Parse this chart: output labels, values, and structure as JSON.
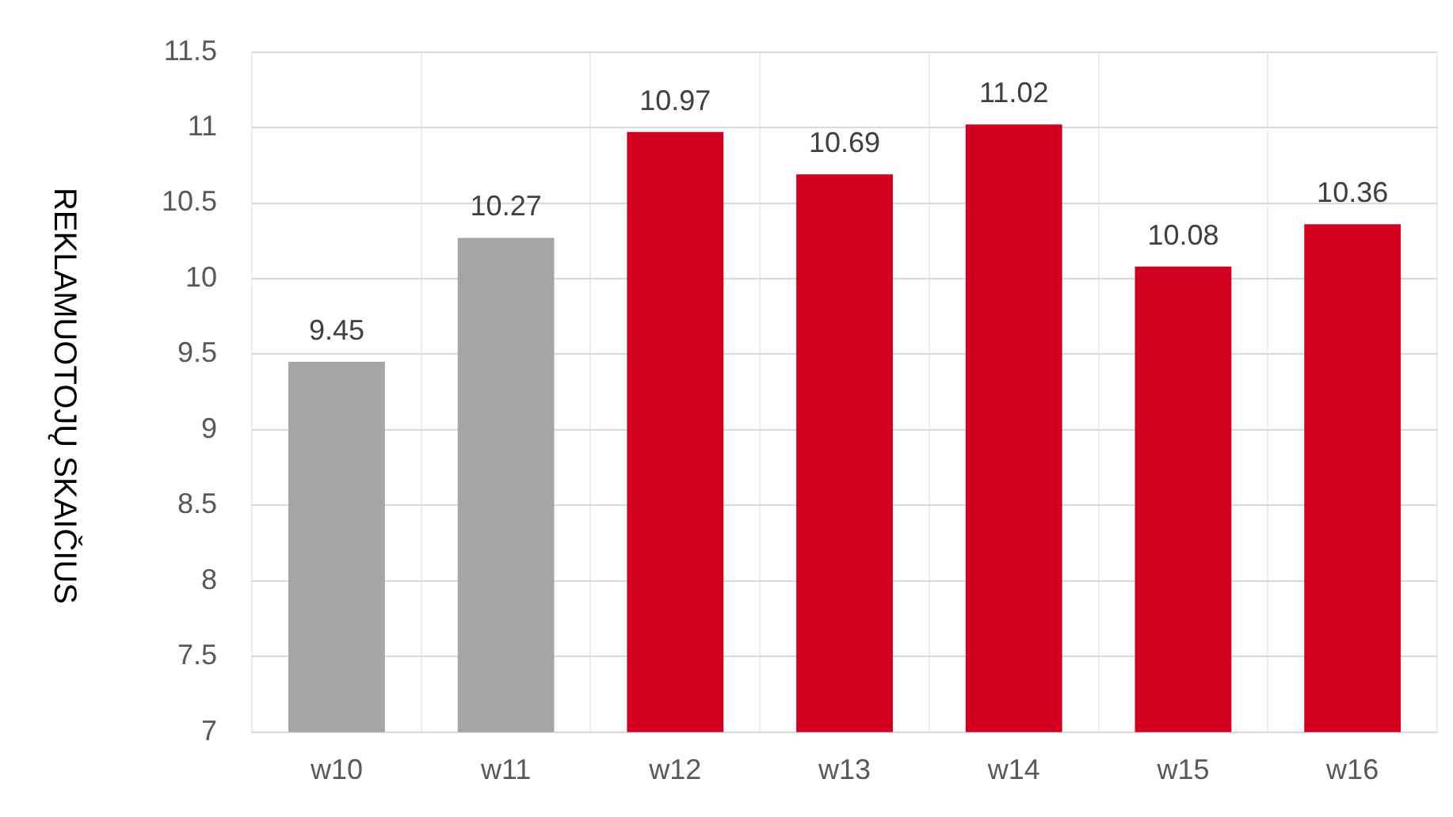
{
  "chart_data": {
    "type": "bar",
    "ylabel": "REKLAMUOTOJŲ SKAIČIUS",
    "categories": [
      "w10",
      "w11",
      "w12",
      "w13",
      "w14",
      "w15",
      "w16"
    ],
    "values": [
      9.45,
      10.27,
      10.97,
      10.69,
      11.02,
      10.08,
      10.36
    ],
    "colors": [
      "#a5a5a5",
      "#a5a5a5",
      "#d2001e",
      "#d2001e",
      "#d2001e",
      "#d2001e",
      "#d2001e"
    ],
    "ylim": [
      7,
      11.5
    ],
    "yticks": [
      7,
      7.5,
      8,
      8.5,
      9,
      9.5,
      10,
      10.5,
      11,
      11.5
    ],
    "grid": true,
    "data_labels": true
  }
}
